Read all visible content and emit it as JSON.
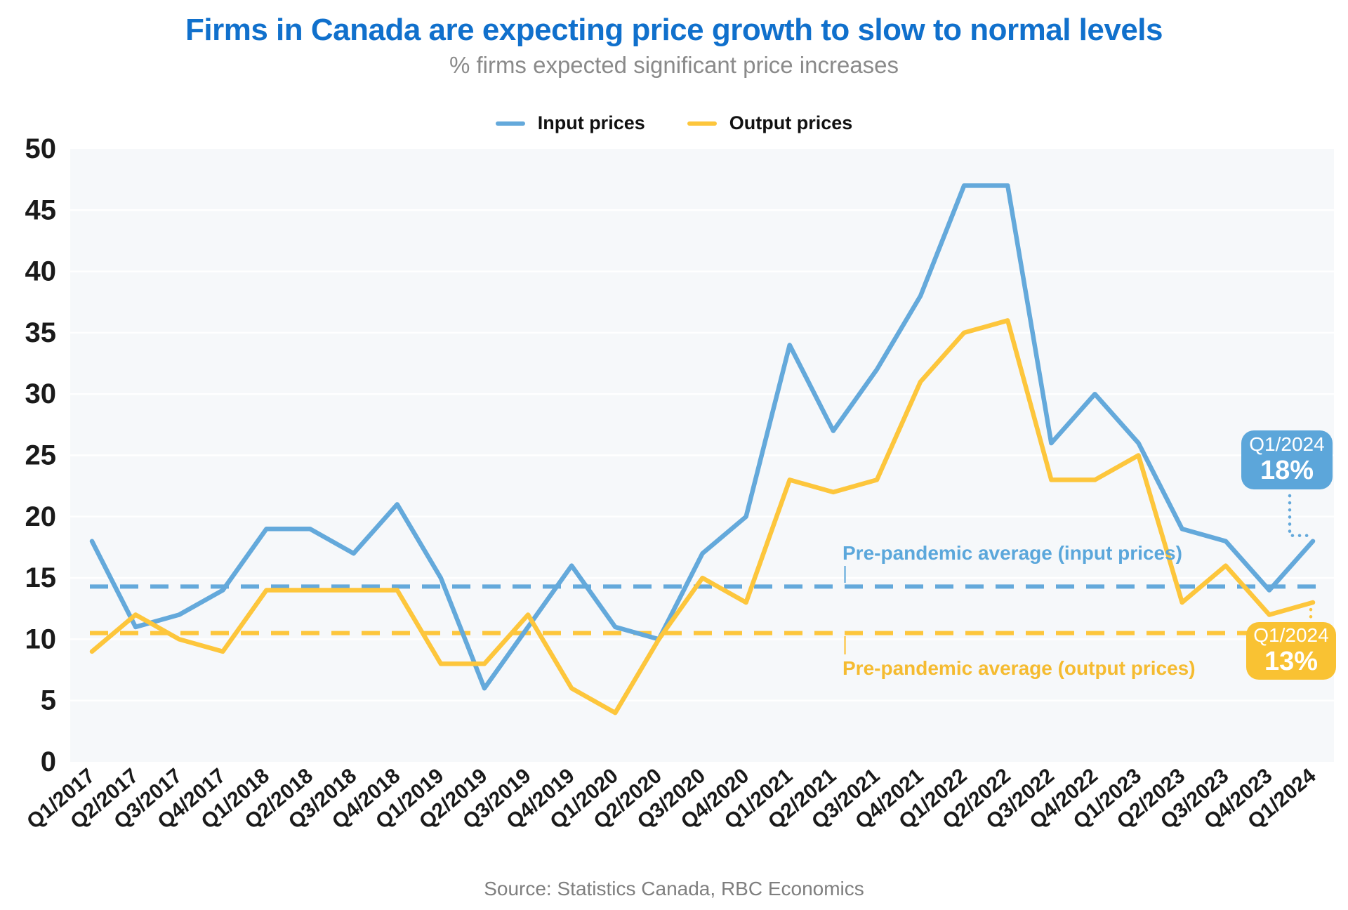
{
  "title": "Firms in Canada are expecting price growth to slow to normal levels",
  "subtitle": "% firms expected significant price increases",
  "legend": {
    "input_label": "Input prices",
    "output_label": "Output prices"
  },
  "annotations": {
    "input_avg_label": "Pre-pandemic average (input prices)",
    "output_avg_label": "Pre-pandemic average (output prices)",
    "input_badge": {
      "period": "Q1/2024",
      "value": "18%"
    },
    "output_badge": {
      "period": "Q1/2024",
      "value": "13%"
    }
  },
  "source": "Source: Statistics Canada, RBC Economics",
  "colors": {
    "title": "#1070CC",
    "subtitle": "#8A8A8A",
    "input": "#64A9DB",
    "output": "#FDC63C",
    "badge_input_bg": "#5CA6DA",
    "badge_output_bg": "#F9C233",
    "plot_bg": "#F6F8FA",
    "gridline": "#FFFFFF",
    "axis_text": "#1A1A1A",
    "source_text": "#7F7F7F"
  },
  "chart_data": {
    "type": "line",
    "title": "Firms in Canada are expecting price growth to slow to normal levels",
    "subtitle": "% firms expected significant price increases",
    "categories": [
      "Q1/2017",
      "Q2/2017",
      "Q3/2017",
      "Q4/2017",
      "Q1/2018",
      "Q2/2018",
      "Q3/2018",
      "Q4/2018",
      "Q1/2019",
      "Q2/2019",
      "Q3/2019",
      "Q4/2019",
      "Q1/2020",
      "Q2/2020",
      "Q3/2020",
      "Q4/2020",
      "Q1/2021",
      "Q2/2021",
      "Q3/2021",
      "Q4/2021",
      "Q1/2022",
      "Q2/2022",
      "Q3/2022",
      "Q4/2022",
      "Q1/2023",
      "Q2/2023",
      "Q3/2023",
      "Q4/2023",
      "Q1/2024"
    ],
    "series": [
      {
        "name": "Input prices",
        "color": "#64A9DB",
        "values": [
          18,
          11,
          12,
          14,
          19,
          19,
          17,
          21,
          15,
          6,
          11,
          16,
          11,
          10,
          17,
          20,
          34,
          27,
          32,
          38,
          47,
          47,
          26,
          30,
          26,
          19,
          18,
          14,
          18
        ]
      },
      {
        "name": "Output prices",
        "color": "#FDC63C",
        "values": [
          9,
          12,
          10,
          9,
          14,
          14,
          14,
          14,
          8,
          8,
          12,
          6,
          4,
          10,
          15,
          13,
          23,
          22,
          23,
          31,
          35,
          36,
          23,
          23,
          25,
          13,
          16,
          12,
          13
        ]
      }
    ],
    "reference_lines": [
      {
        "name": "Pre-pandemic average (input prices)",
        "value": 14.3,
        "color": "#64A9DB"
      },
      {
        "name": "Pre-pandemic average (output prices)",
        "value": 10.5,
        "color": "#FDC63C"
      }
    ],
    "yticks": [
      0,
      5,
      10,
      15,
      20,
      25,
      30,
      35,
      40,
      45,
      50
    ],
    "ylim": [
      0,
      50
    ],
    "xlabel": "",
    "ylabel": "",
    "grid": true,
    "legend_position": "top"
  }
}
